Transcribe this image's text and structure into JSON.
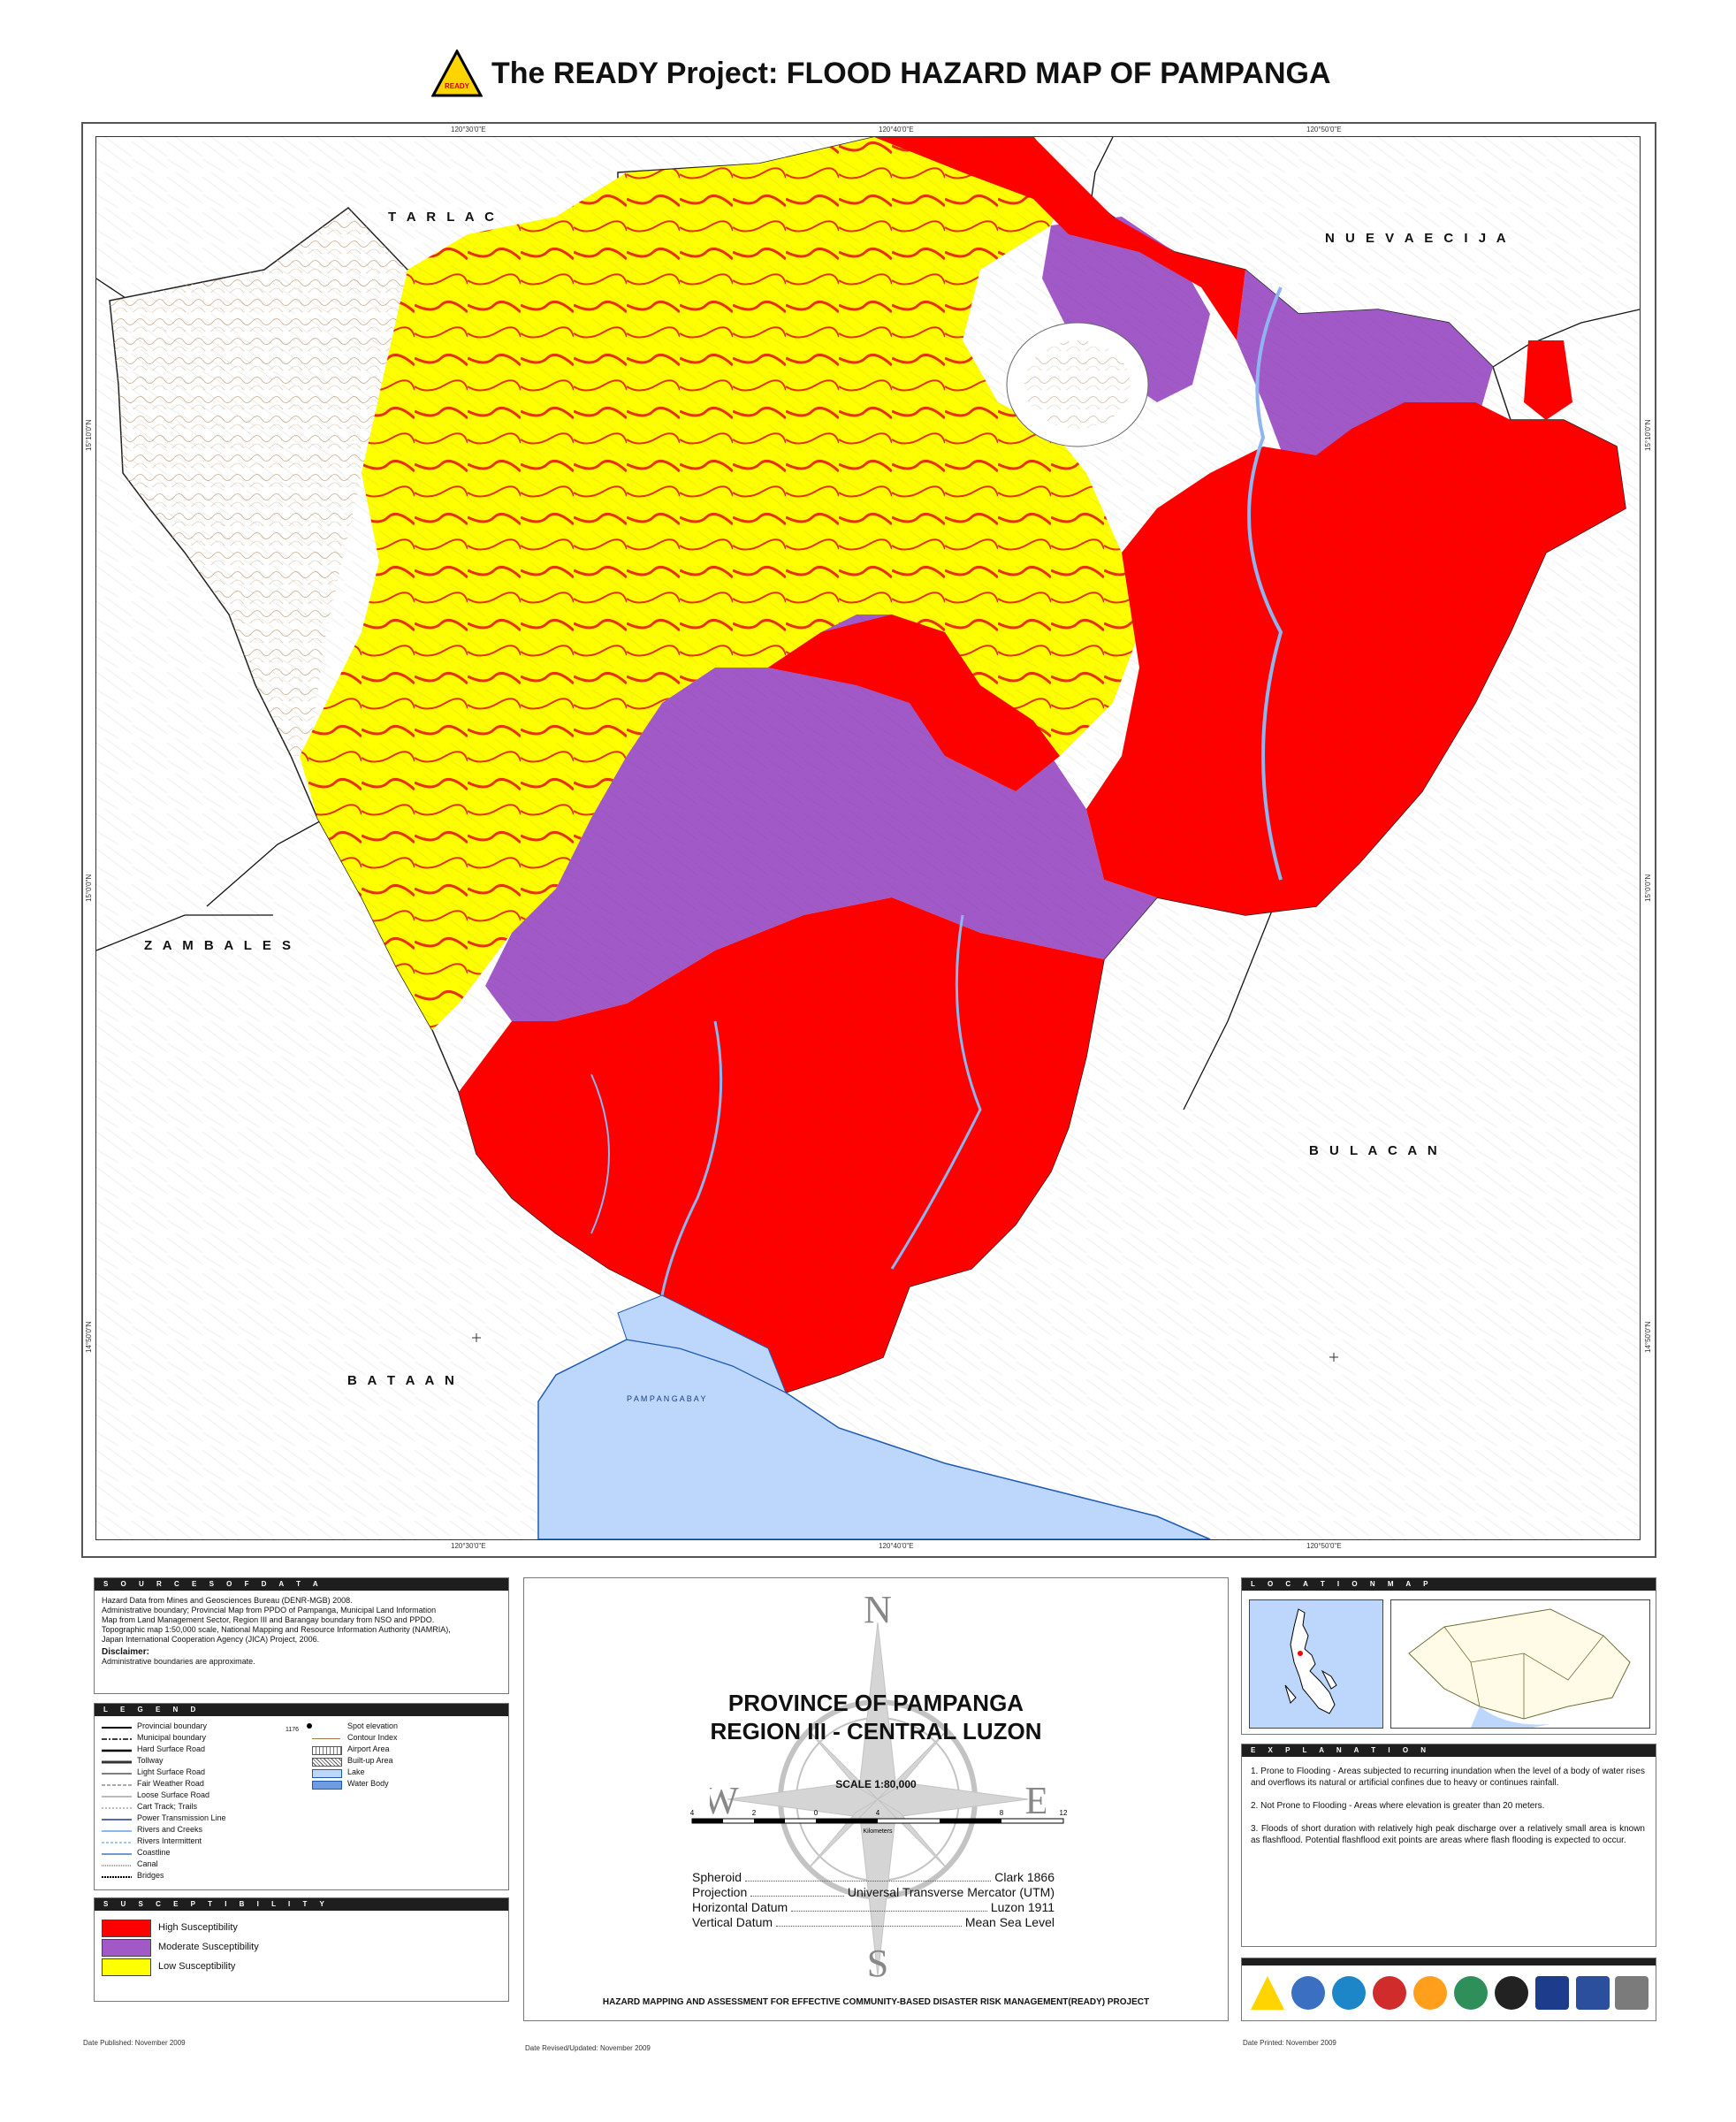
{
  "title": "The READY Project: FLOOD HAZARD MAP OF PAMPANGA",
  "logo_text": "READY",
  "map": {
    "coords_top": [
      "120°30'0\"E",
      "120°40'0\"E",
      "120°50'0\"E"
    ],
    "coords_bottom": [
      "120°30'0\"E",
      "120°40'0\"E",
      "120°50'0\"E"
    ],
    "coords_left": [
      "15°10'0\"N",
      "15°0'0\"N",
      "14°50'0\"N"
    ],
    "coords_right": [
      "15°10'0\"N",
      "15°0'0\"N",
      "14°50'0\"N"
    ],
    "neighbors": {
      "tarlac": "T A R L A C",
      "nueva_ecija": "N U E V A   E C I J A",
      "zambales": "Z A M B A L E S",
      "bulacan": "B U L A C A N",
      "bataan": "B A T A A N"
    },
    "bay_label": "P A M P A N G A   B A Y",
    "colors": {
      "high": "#ff0000",
      "moderate": "#a259c8",
      "low": "#ffff00",
      "water": "#bcd7fb",
      "mountain": "#ffffff"
    }
  },
  "sources": {
    "header": "S O U R C E S   O F   D A T A",
    "lines": [
      "Hazard Data from Mines and Geosciences Bureau (DENR-MGB) 2008.",
      "Administrative boundary; Provincial Map from PPDO of Pampanga, Municipal Land Information",
      "Map from Land Management Sector, Region III and Barangay boundary from NSO and PPDO.",
      "Topographic map 1:50,000 scale, National Mapping and  Resource Information Authority (NAMRIA),",
      "Japan International Cooperation Agency (JICA) Project, 2006."
    ],
    "disclaimer_title": "Disclaimer:",
    "disclaimer_text": "Administrative boundaries are approximate."
  },
  "legend": {
    "header": "L E G E N D",
    "left": [
      "Provincial boundary",
      "Municipal boundary",
      "Hard Surface Road",
      "Tollway",
      "Light Surface Road",
      "Fair Weather Road",
      "Loose Surface Road",
      "Cart Track; Trails",
      "Power Transmission Line",
      "Rivers and Creeks",
      "Rivers Intermittent",
      "Coastline",
      "Canal",
      "Bridges"
    ],
    "right": [
      "Spot elevation",
      "Contour Index",
      "Airport Area",
      "Built-up Area",
      "Lake",
      "Water Body"
    ],
    "spot_value": "1176"
  },
  "susceptibility": {
    "header": "S U S C E P T I B I L I T Y",
    "items": [
      "High Susceptibility",
      "Moderate Susceptibility",
      "Low Susceptibility"
    ]
  },
  "center": {
    "title1": "PROVINCE OF PAMPANGA",
    "title2": "REGION III - CENTRAL LUZON",
    "scale": "SCALE 1:80,000",
    "scale_ticks": [
      "4",
      "2",
      "0",
      "4",
      "8",
      "12"
    ],
    "scale_unit": "Kilometers",
    "compass": {
      "n": "N",
      "s": "S",
      "e": "E",
      "w": "W"
    },
    "specs": [
      {
        "label": "Spheroid",
        "value": "Clark 1866"
      },
      {
        "label": "Projection",
        "value": "Universal Transverse Mercator (UTM)"
      },
      {
        "label": "Horizontal Datum",
        "value": "Luzon 1911"
      },
      {
        "label": "Vertical Datum",
        "value": "Mean Sea Level"
      }
    ],
    "project": "HAZARD MAPPING AND ASSESSMENT FOR EFFECTIVE COMMUNITY-BASED DISASTER RISK MANAGEMENT(READY) PROJECT"
  },
  "location_map": {
    "header": "L O C A T I O N   M A P"
  },
  "explanation": {
    "header": "E X P L A N A T I O N",
    "items": [
      "1. Prone to Flooding - Areas subjected to recurring inundation when the level of a body of water rises and overflows its natural or artificial confines due to heavy or continues rainfall.",
      "2. Not Prone to Flooding - Areas where elevation is greater than 20 meters.",
      "3. Floods of short duration with relatively high peak discharge over a relatively small area is known as flashflood. Potential flashflood exit points are areas where flash flooding is expected to occur."
    ]
  },
  "footer": {
    "published": "Date Published: November 2009",
    "revised": "Date Revised/Updated: November 2009",
    "printed": "Date Printed: November 2009"
  }
}
